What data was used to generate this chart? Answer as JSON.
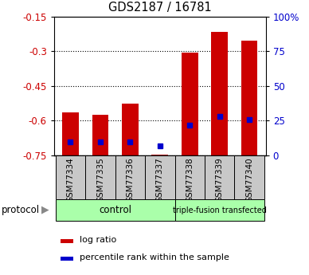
{
  "title": "GDS2187 / 16781",
  "samples": [
    "GSM77334",
    "GSM77335",
    "GSM77336",
    "GSM77337",
    "GSM77338",
    "GSM77339",
    "GSM77340"
  ],
  "log_ratio": [
    -0.565,
    -0.575,
    -0.525,
    -0.748,
    -0.305,
    -0.215,
    -0.255
  ],
  "percentile": [
    10,
    10,
    10,
    7,
    22,
    28,
    26
  ],
  "ylim": [
    -0.75,
    -0.15
  ],
  "yticks_left": [
    -0.75,
    -0.6,
    -0.45,
    -0.3,
    -0.15
  ],
  "yticks_right": [
    0,
    25,
    50,
    75,
    100
  ],
  "bar_color": "#cc0000",
  "percentile_color": "#0000cc",
  "bar_width": 0.55,
  "tick_label_color_left": "#cc0000",
  "tick_label_color_right": "#0000cc",
  "protocol_label": "protocol",
  "legend_items": [
    {
      "label": "log ratio",
      "color": "#cc0000"
    },
    {
      "label": "percentile rank within the sample",
      "color": "#0000cc"
    }
  ],
  "control_color": "#aaffaa",
  "sample_box_color": "#c8c8c8"
}
